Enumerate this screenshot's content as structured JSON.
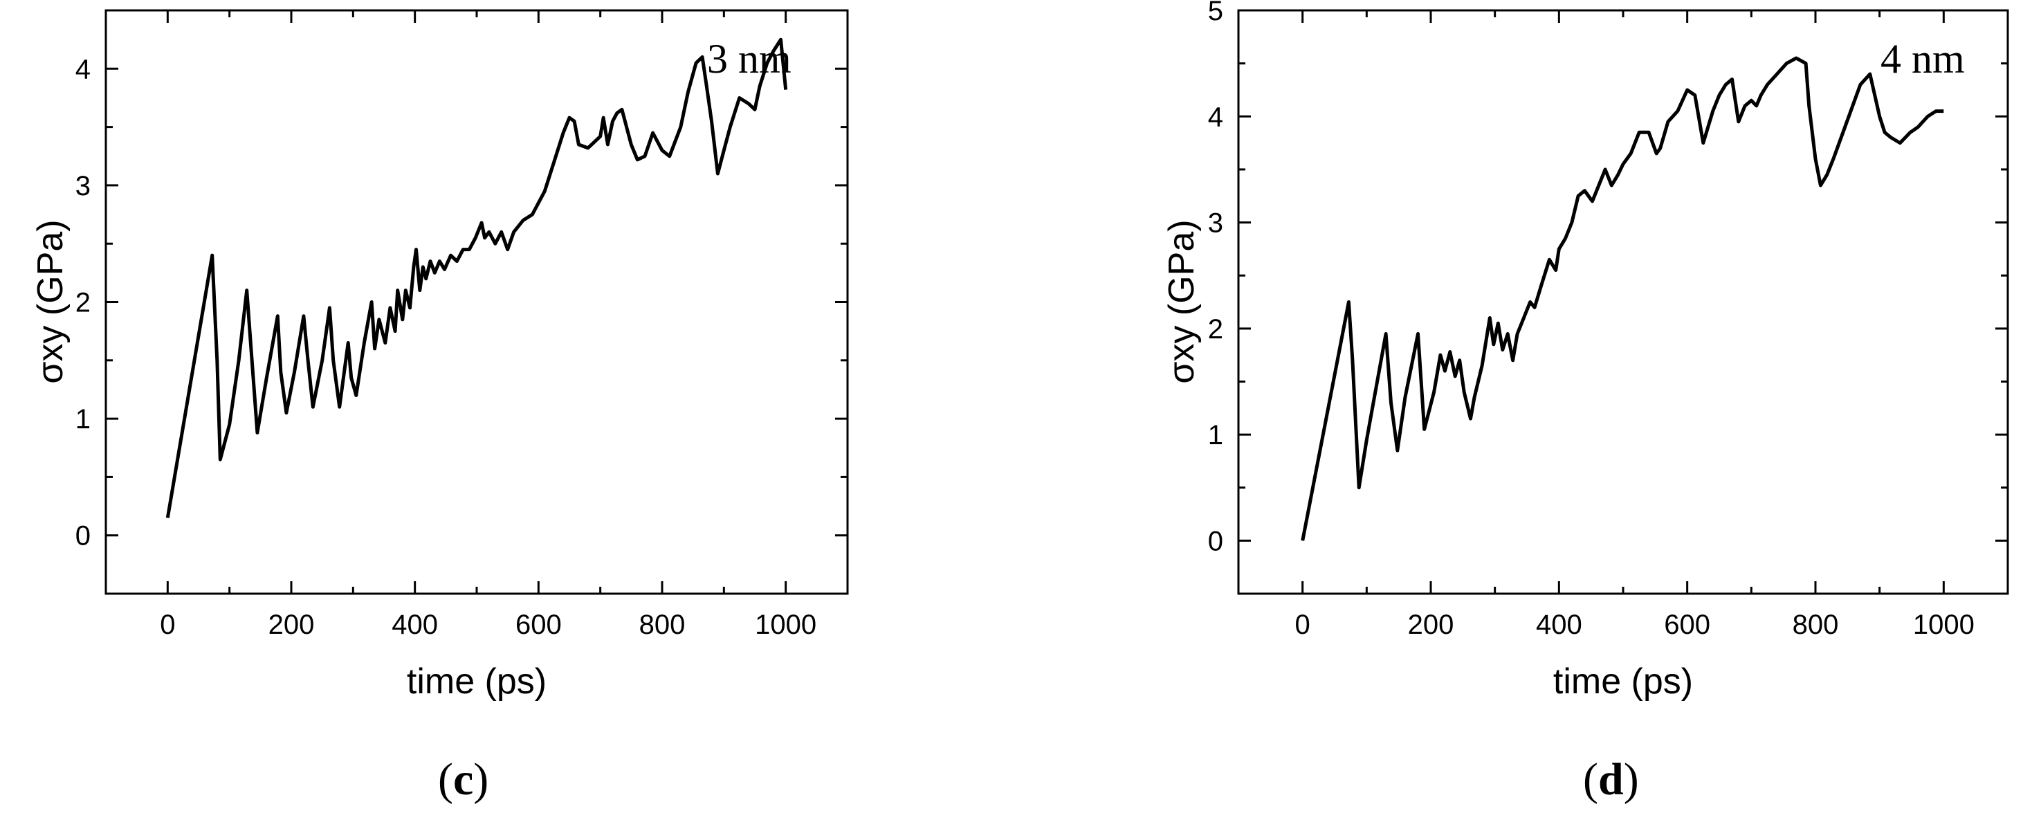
{
  "chart_data": [
    {
      "type": "line",
      "panel_label": {
        "open": "(",
        "letter": "c",
        "close": ")"
      },
      "annotation": "3 nm",
      "xlabel": "time (ps)",
      "ylabel": "σxy (GPa)",
      "xlim": [
        -100,
        1100
      ],
      "ylim": [
        -0.5,
        4.5
      ],
      "xticks": [
        0,
        200,
        400,
        600,
        800,
        1000
      ],
      "yticks": [
        0,
        1,
        2,
        3,
        4
      ],
      "grid": false,
      "series": [
        {
          "x": [
            0,
            72,
            80,
            85,
            100,
            115,
            128,
            135,
            145,
            160,
            178,
            183,
            192,
            205,
            220,
            227,
            235,
            250,
            262,
            268,
            278,
            292,
            297,
            305,
            318,
            330,
            335,
            342,
            352,
            360,
            368,
            372,
            380,
            385,
            392,
            398,
            402,
            408,
            413,
            418,
            425,
            432,
            440,
            448,
            458,
            468,
            478,
            488,
            498,
            508,
            513,
            520,
            530,
            540,
            550,
            560,
            575,
            590,
            610,
            625,
            640,
            650,
            658,
            665,
            680,
            700,
            705,
            712,
            720,
            727,
            735,
            750,
            760,
            772,
            785,
            800,
            812,
            830,
            842,
            855,
            865,
            872,
            880,
            890,
            900,
            910,
            925,
            940,
            950,
            958,
            970,
            980,
            992,
            1000
          ],
          "y": [
            0.15,
            2.4,
            1.5,
            0.65,
            0.95,
            1.5,
            2.1,
            1.6,
            0.88,
            1.35,
            1.88,
            1.4,
            1.05,
            1.4,
            1.88,
            1.5,
            1.1,
            1.5,
            1.95,
            1.5,
            1.1,
            1.65,
            1.35,
            1.2,
            1.65,
            2.0,
            1.6,
            1.85,
            1.65,
            1.95,
            1.75,
            2.1,
            1.85,
            2.1,
            1.95,
            2.3,
            2.45,
            2.1,
            2.3,
            2.2,
            2.35,
            2.25,
            2.35,
            2.28,
            2.4,
            2.35,
            2.45,
            2.45,
            2.55,
            2.68,
            2.55,
            2.6,
            2.5,
            2.6,
            2.45,
            2.6,
            2.7,
            2.75,
            2.95,
            3.2,
            3.45,
            3.58,
            3.55,
            3.35,
            3.32,
            3.42,
            3.58,
            3.35,
            3.55,
            3.62,
            3.65,
            3.35,
            3.22,
            3.25,
            3.45,
            3.3,
            3.25,
            3.5,
            3.8,
            4.05,
            4.1,
            3.85,
            3.55,
            3.1,
            3.3,
            3.5,
            3.75,
            3.7,
            3.65,
            3.85,
            4.05,
            4.15,
            4.25,
            3.82
          ]
        }
      ]
    },
    {
      "type": "line",
      "panel_label": {
        "open": "(",
        "letter": "d",
        "close": ")"
      },
      "annotation": "4 nm",
      "xlabel": "time (ps)",
      "ylabel": "σxy (GPa)",
      "xlim": [
        -100,
        1100
      ],
      "ylim": [
        -0.5,
        5
      ],
      "xticks": [
        0,
        200,
        400,
        600,
        800,
        1000
      ],
      "yticks": [
        0,
        1,
        2,
        3,
        4,
        5
      ],
      "grid": false,
      "series": [
        {
          "x": [
            0,
            72,
            78,
            88,
            100,
            115,
            130,
            138,
            148,
            160,
            180,
            185,
            190,
            205,
            215,
            222,
            230,
            238,
            245,
            252,
            262,
            268,
            280,
            292,
            298,
            305,
            312,
            320,
            328,
            335,
            345,
            355,
            362,
            372,
            385,
            395,
            400,
            410,
            420,
            430,
            440,
            452,
            462,
            472,
            482,
            492,
            500,
            512,
            525,
            540,
            552,
            558,
            570,
            585,
            600,
            612,
            625,
            640,
            650,
            660,
            670,
            680,
            690,
            700,
            708,
            715,
            725,
            740,
            755,
            770,
            785,
            790,
            800,
            808,
            818,
            828,
            840,
            855,
            870,
            885,
            900,
            908,
            918,
            932,
            948,
            960,
            975,
            988,
            1000
          ],
          "y": [
            0.0,
            2.25,
            1.7,
            0.5,
            0.95,
            1.45,
            1.95,
            1.3,
            0.85,
            1.35,
            1.95,
            1.5,
            1.05,
            1.4,
            1.75,
            1.6,
            1.78,
            1.55,
            1.7,
            1.4,
            1.15,
            1.35,
            1.65,
            2.1,
            1.85,
            2.05,
            1.8,
            1.95,
            1.7,
            1.95,
            2.1,
            2.25,
            2.2,
            2.4,
            2.65,
            2.55,
            2.75,
            2.85,
            3.0,
            3.25,
            3.3,
            3.2,
            3.35,
            3.5,
            3.35,
            3.45,
            3.55,
            3.65,
            3.85,
            3.85,
            3.65,
            3.7,
            3.95,
            4.05,
            4.25,
            4.2,
            3.75,
            4.05,
            4.2,
            4.3,
            4.35,
            3.95,
            4.1,
            4.15,
            4.1,
            4.2,
            4.3,
            4.4,
            4.5,
            4.55,
            4.5,
            4.1,
            3.6,
            3.35,
            3.45,
            3.6,
            3.8,
            4.05,
            4.3,
            4.4,
            4.0,
            3.85,
            3.8,
            3.75,
            3.85,
            3.9,
            4.0,
            4.05,
            4.05
          ]
        }
      ]
    }
  ]
}
